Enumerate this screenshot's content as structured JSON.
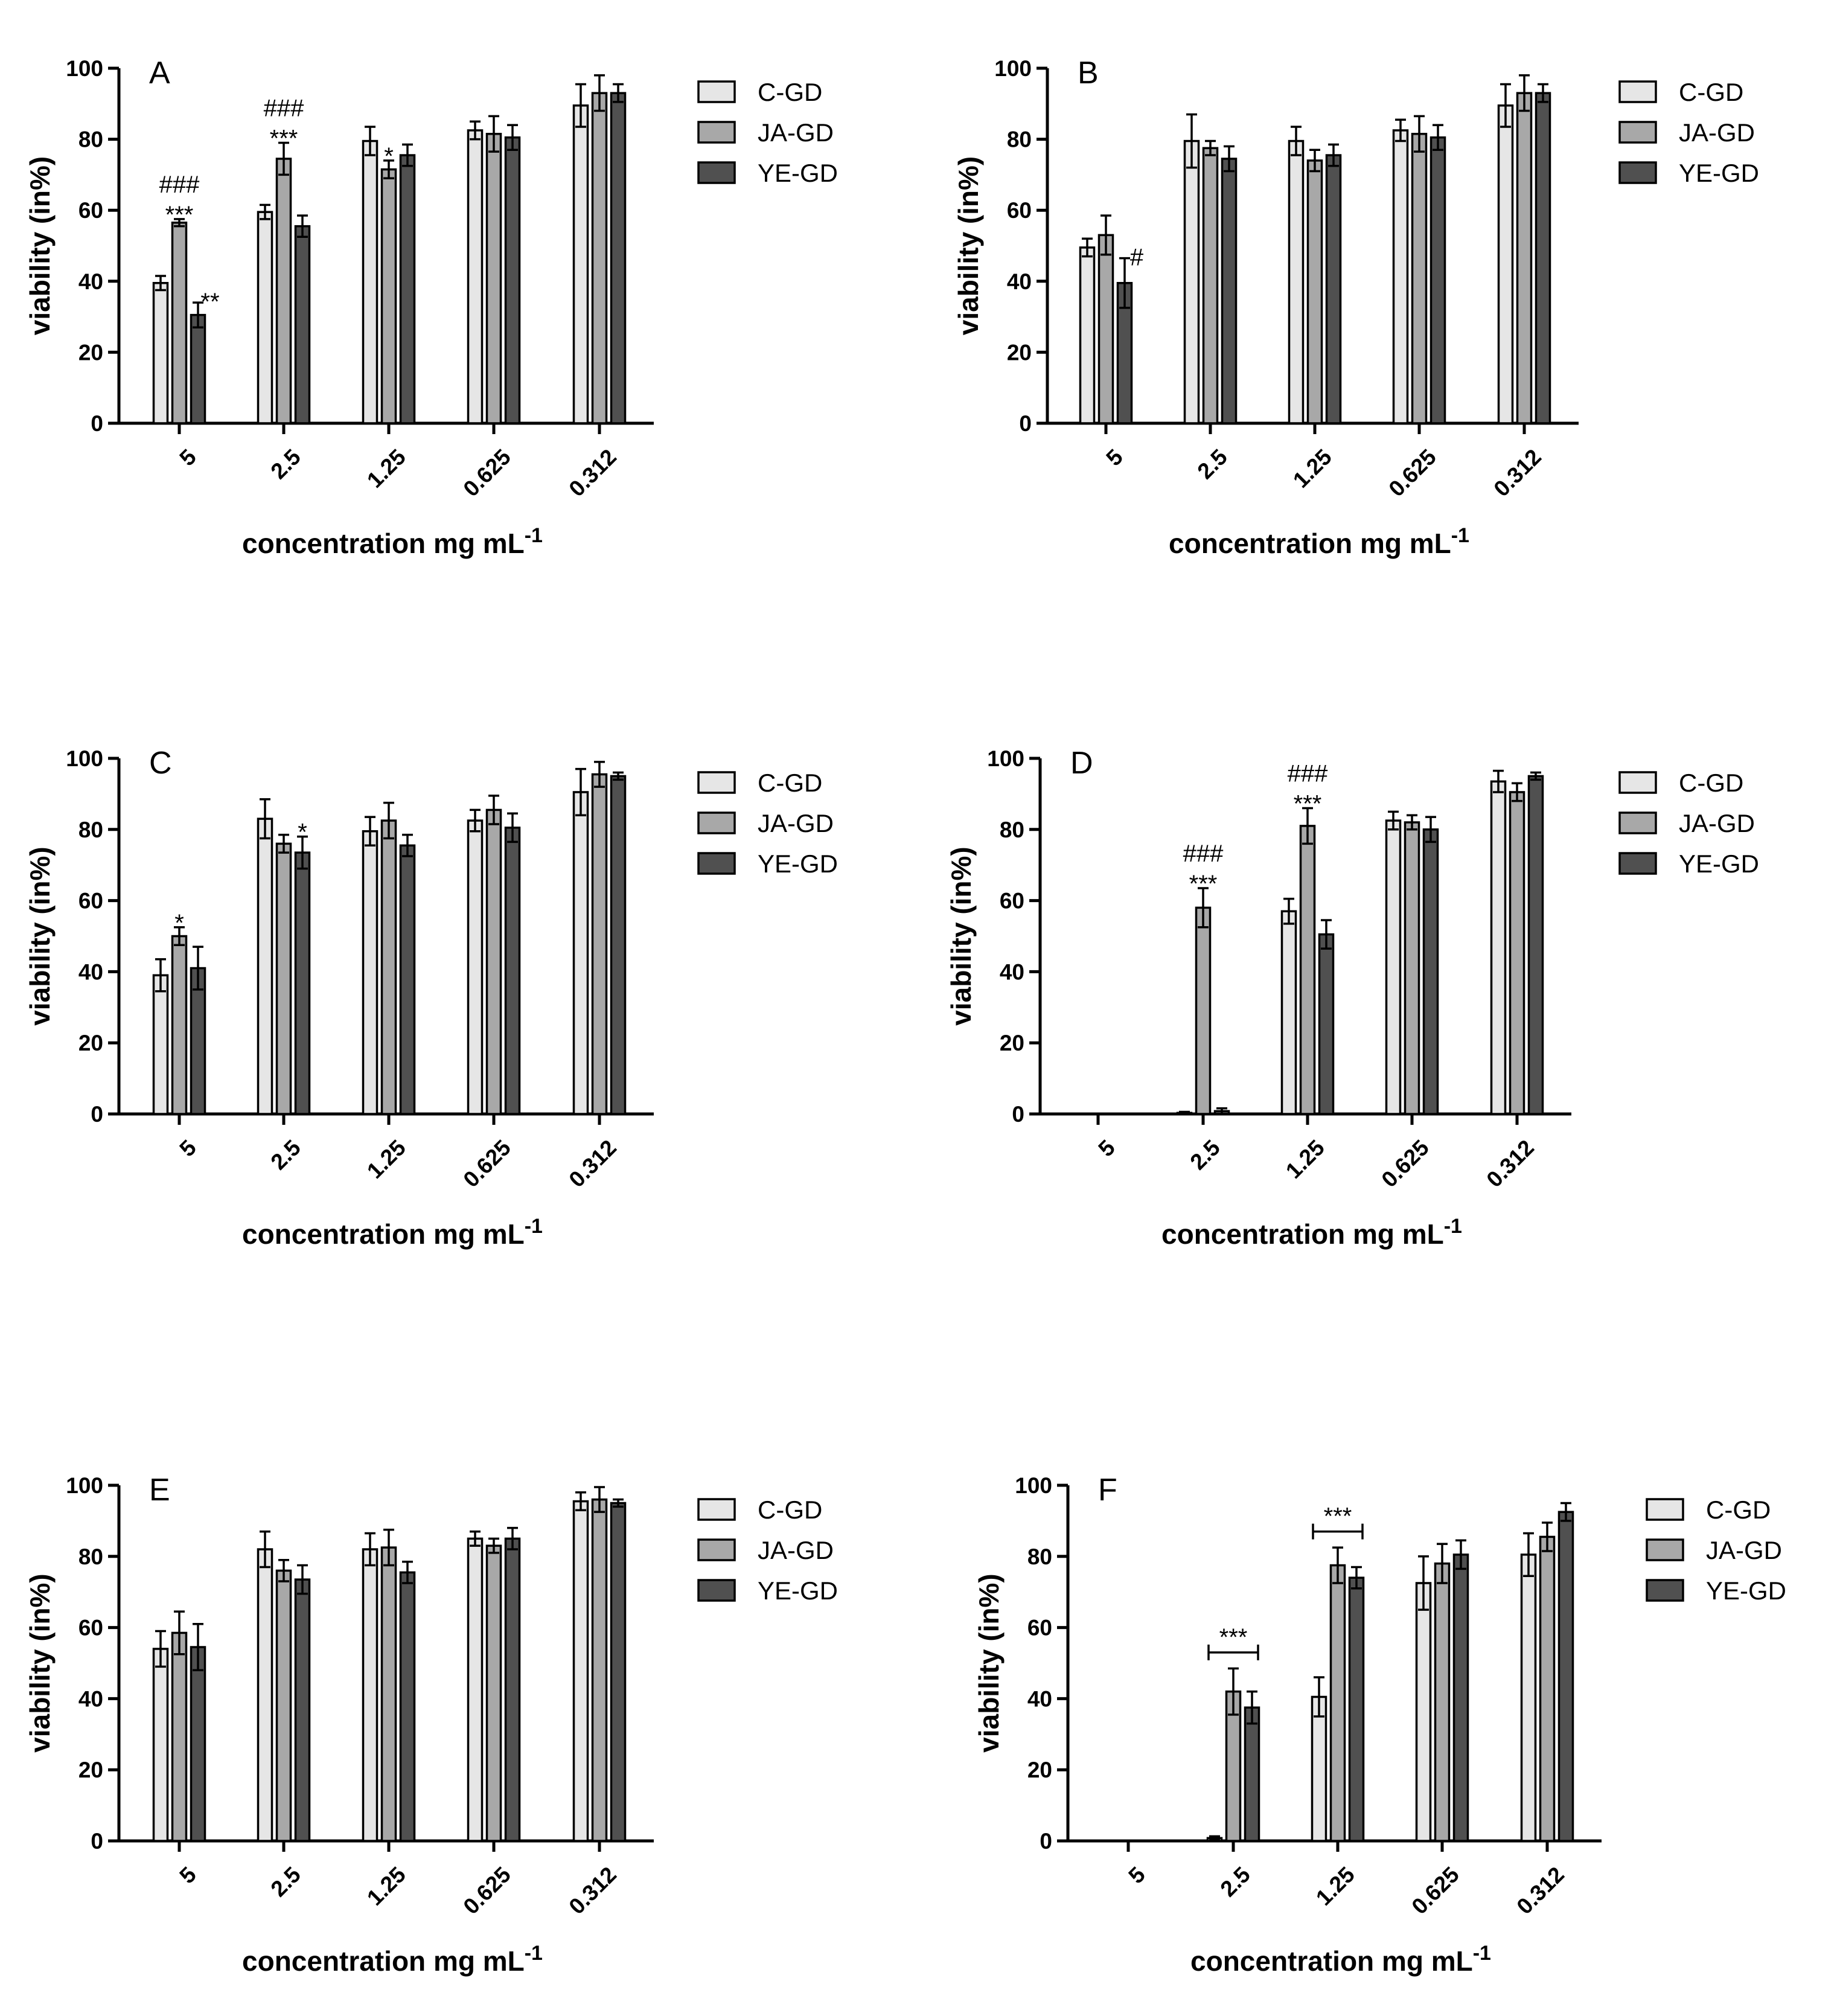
{
  "colors": {
    "c_gd": "#e6e6e6",
    "ja_gd": "#a8a8a8",
    "ye_gd": "#505050",
    "axis": "#000000"
  },
  "chart_data": [
    {
      "type": "bar",
      "panel": "A",
      "categories": [
        "5",
        "2.5",
        "1.25",
        "0.625",
        "0.312"
      ],
      "xlabel": "concentration mg mL",
      "xlabel_sup": "-1",
      "ylabel": "viability (in%)",
      "ylim": [
        0,
        100
      ],
      "yticks": [
        0,
        20,
        40,
        60,
        80,
        100
      ],
      "legend": [
        "C-GD",
        "JA-GD",
        "YE-GD"
      ],
      "series": [
        {
          "name": "C-GD",
          "values": [
            39.5,
            59.5,
            79.5,
            82.5,
            89.5
          ],
          "errors": [
            2.0,
            2.0,
            4.0,
            2.5,
            6.0
          ]
        },
        {
          "name": "JA-GD",
          "values": [
            56.5,
            74.5,
            71.5,
            81.5,
            93.0
          ],
          "errors": [
            1.0,
            4.5,
            2.5,
            5.0,
            5.0
          ]
        },
        {
          "name": "YE-GD",
          "values": [
            30.5,
            55.5,
            75.5,
            80.5,
            93.0
          ],
          "errors": [
            3.5,
            3.0,
            3.0,
            3.5,
            2.5
          ]
        }
      ],
      "annotations": [
        {
          "text": "###",
          "category": 0,
          "series": 1,
          "row": 1
        },
        {
          "text": "***",
          "category": 0,
          "series": 1,
          "row": 0
        },
        {
          "text": "**",
          "category": 0,
          "series": 2,
          "row": 0
        },
        {
          "text": "###",
          "category": 1,
          "series": 1,
          "row": 1
        },
        {
          "text": "***",
          "category": 1,
          "series": 1,
          "row": 0
        },
        {
          "text": "*",
          "category": 2,
          "series": 1,
          "row": 0
        }
      ]
    },
    {
      "type": "bar",
      "panel": "B",
      "categories": [
        "5",
        "2.5",
        "1.25",
        "0.625",
        "0.312"
      ],
      "xlabel": "concentration mg mL",
      "xlabel_sup": "-1",
      "ylabel": "viability (in%)",
      "ylim": [
        0,
        100
      ],
      "yticks": [
        0,
        20,
        40,
        60,
        80,
        100
      ],
      "legend": [
        "C-GD",
        "JA-GD",
        "YE-GD"
      ],
      "series": [
        {
          "name": "C-GD",
          "values": [
            49.5,
            79.5,
            79.5,
            82.5,
            89.5
          ],
          "errors": [
            2.5,
            7.5,
            4.0,
            3.0,
            6.0
          ]
        },
        {
          "name": "JA-GD",
          "values": [
            53.0,
            77.5,
            74.0,
            81.5,
            93.0
          ],
          "errors": [
            5.5,
            2.0,
            3.0,
            5.0,
            5.0
          ]
        },
        {
          "name": "YE-GD",
          "values": [
            39.5,
            74.5,
            75.5,
            80.5,
            93.0
          ],
          "errors": [
            7.0,
            3.5,
            3.0,
            3.5,
            2.5
          ]
        }
      ],
      "annotations": [
        {
          "text": "#",
          "category": 0,
          "series": 2,
          "row": 0
        }
      ]
    },
    {
      "type": "bar",
      "panel": "C",
      "categories": [
        "5",
        "2.5",
        "1.25",
        "0.625",
        "0.312"
      ],
      "xlabel": "concentration mg mL",
      "xlabel_sup": "-1",
      "ylabel": "viability (in%)",
      "ylim": [
        0,
        100
      ],
      "yticks": [
        0,
        20,
        40,
        60,
        80,
        100
      ],
      "legend": [
        "C-GD",
        "JA-GD",
        "YE-GD"
      ],
      "series": [
        {
          "name": "C-GD",
          "values": [
            39.0,
            83.0,
            79.5,
            82.5,
            90.5
          ],
          "errors": [
            4.5,
            5.5,
            4.0,
            3.0,
            6.5
          ]
        },
        {
          "name": "JA-GD",
          "values": [
            50.0,
            76.0,
            82.5,
            85.5,
            95.5
          ],
          "errors": [
            2.5,
            2.5,
            5.0,
            4.0,
            3.5
          ]
        },
        {
          "name": "YE-GD",
          "values": [
            41.0,
            73.5,
            75.5,
            80.5,
            95.0
          ],
          "errors": [
            6.0,
            4.5,
            3.0,
            4.0,
            1.0
          ]
        }
      ],
      "annotations": [
        {
          "text": "*",
          "category": 0,
          "series": 1,
          "row": 0
        },
        {
          "text": "*",
          "category": 1,
          "series": 2,
          "row": 0
        }
      ]
    },
    {
      "type": "bar",
      "panel": "D",
      "categories": [
        "5",
        "2.5",
        "1.25",
        "0.625",
        "0.312"
      ],
      "xlabel": "concentration mg mL",
      "xlabel_sup": "-1",
      "ylabel": "viability (in%)",
      "ylim": [
        0,
        100
      ],
      "yticks": [
        0,
        20,
        40,
        60,
        80,
        100
      ],
      "legend": [
        "C-GD",
        "JA-GD",
        "YE-GD"
      ],
      "series": [
        {
          "name": "C-GD",
          "values": [
            0,
            0.3,
            57.0,
            82.5,
            93.5
          ],
          "errors": [
            0,
            0.3,
            3.5,
            2.5,
            3.0
          ]
        },
        {
          "name": "JA-GD",
          "values": [
            0,
            58.0,
            81.0,
            82.0,
            90.5
          ],
          "errors": [
            0,
            5.5,
            5.0,
            2.0,
            2.5
          ]
        },
        {
          "name": "YE-GD",
          "values": [
            0,
            0.8,
            50.5,
            80.0,
            95.0
          ],
          "errors": [
            0,
            0.8,
            4.0,
            3.5,
            1.0
          ]
        }
      ],
      "annotations": [
        {
          "text": "###",
          "category": 1,
          "series": 1,
          "row": 1
        },
        {
          "text": "***",
          "category": 1,
          "series": 1,
          "row": 0
        },
        {
          "text": "###",
          "category": 2,
          "series": 1,
          "row": 1
        },
        {
          "text": "***",
          "category": 2,
          "series": 1,
          "row": 0
        }
      ]
    },
    {
      "type": "bar",
      "panel": "E",
      "categories": [
        "5",
        "2.5",
        "1.25",
        "0.625",
        "0.312"
      ],
      "xlabel": "concentration mg mL",
      "xlabel_sup": "-1",
      "ylabel": "viability (in%)",
      "ylim": [
        0,
        100
      ],
      "yticks": [
        0,
        20,
        40,
        60,
        80,
        100
      ],
      "legend": [
        "C-GD",
        "JA-GD",
        "YE-GD"
      ],
      "series": [
        {
          "name": "C-GD",
          "values": [
            54.0,
            82.0,
            82.0,
            85.0,
            95.5
          ],
          "errors": [
            5.0,
            5.0,
            4.5,
            2.0,
            2.5
          ]
        },
        {
          "name": "JA-GD",
          "values": [
            58.5,
            76.0,
            82.5,
            83.0,
            96.0
          ],
          "errors": [
            6.0,
            3.0,
            5.0,
            2.0,
            3.5
          ]
        },
        {
          "name": "YE-GD",
          "values": [
            54.5,
            73.5,
            75.5,
            85.0,
            95.0
          ],
          "errors": [
            6.5,
            4.0,
            3.0,
            3.0,
            1.0
          ]
        }
      ],
      "annotations": []
    },
    {
      "type": "bar",
      "panel": "F",
      "categories": [
        "5",
        "2.5",
        "1.25",
        "0.625",
        "0.312"
      ],
      "xlabel": "concentration mg mL",
      "xlabel_sup": "-1",
      "ylabel": "viability (in%)",
      "ylim": [
        0,
        100
      ],
      "yticks": [
        0,
        20,
        40,
        60,
        80,
        100
      ],
      "legend": [
        "C-GD",
        "JA-GD",
        "YE-GD"
      ],
      "series": [
        {
          "name": "C-GD",
          "values": [
            0,
            0.8,
            40.5,
            72.5,
            80.5
          ],
          "errors": [
            0,
            0.5,
            5.5,
            7.5,
            6.0
          ]
        },
        {
          "name": "JA-GD",
          "values": [
            0,
            42.0,
            77.5,
            78.0,
            85.5
          ],
          "errors": [
            0,
            6.5,
            5.0,
            5.5,
            4.0
          ]
        },
        {
          "name": "YE-GD",
          "values": [
            0,
            37.5,
            74.0,
            80.5,
            92.5
          ],
          "errors": [
            0,
            4.5,
            3.0,
            4.0,
            2.5
          ]
        }
      ],
      "annotations": [],
      "brackets": [
        {
          "text": "***",
          "category": 1,
          "y": 53
        },
        {
          "text": "***",
          "category": 2,
          "y": 87
        }
      ]
    }
  ]
}
